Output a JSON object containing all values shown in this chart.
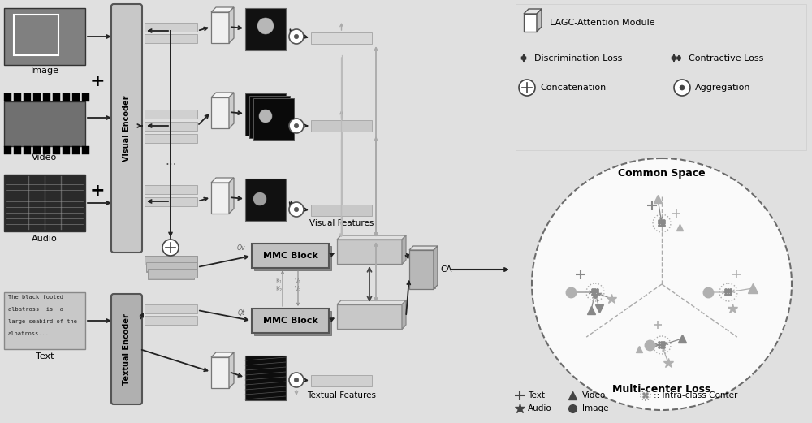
{
  "bg_color": "#e0e0e0",
  "legend_items": {
    "lagc_label": "LAGC-Attention Module",
    "disc_loss": "Discrimination Loss",
    "cont_loss": "Contractive Loss",
    "concat": "Concatenation",
    "aggregation": "Aggregation"
  },
  "common_space_label": "Common Space",
  "multicenter_label": "Multi-center Loss",
  "ca_label": "CA",
  "visual_encoder_label": "Visual Encoder",
  "textual_encoder_label": "Textual Encoder",
  "mmc_block_label": "MMC Block",
  "visual_features_label": "Visual Features",
  "textual_features_label": "Textual Features",
  "image_label": "Image",
  "video_label": "Video",
  "audio_label": "Audio",
  "text_label": "Text",
  "Qv_label": "Qv",
  "Qt_label": "Qt",
  "K1V1_label": "K₁  V₁",
  "K2V2_label": "K₂  V₂"
}
